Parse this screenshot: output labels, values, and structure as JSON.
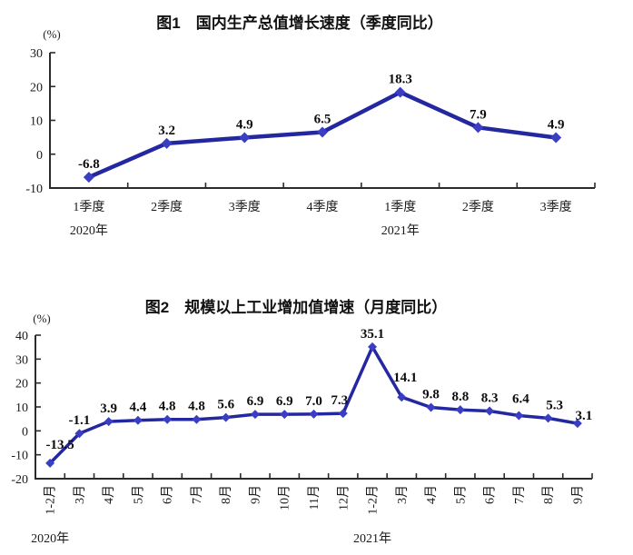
{
  "page": {
    "background": "#ffffff",
    "description": "Two stacked line charts from a national statistics quarterly report"
  },
  "colors": {
    "line": "#2428a0",
    "marker": "#3a3ec4",
    "axis": "#2b2b2b",
    "text": "#111111",
    "background": "#ffffff"
  },
  "chart_data": [
    {
      "id": "gdp-growth",
      "type": "line",
      "title": "图1　国内生产总值增长速度（季度同比）",
      "unit": "(%)",
      "xlabel": "",
      "ylabel": "(%)",
      "categories": [
        "1季度",
        "2季度",
        "3季度",
        "4季度",
        "1季度",
        "2季度",
        "3季度"
      ],
      "values": [
        -6.8,
        3.2,
        4.9,
        6.5,
        18.3,
        7.9,
        4.9
      ],
      "point_labels": [
        "-6.8",
        "3.2",
        "4.9",
        "6.5",
        "18.3",
        "7.9",
        "4.9"
      ],
      "y_ticks": [
        30,
        20,
        10,
        0,
        -10
      ],
      "ylim": [
        -10,
        30
      ],
      "years": [
        {
          "label": "2020年",
          "category_index": 0
        },
        {
          "label": "2021年",
          "category_index": 4
        }
      ],
      "line_color": "#2428a0",
      "marker_color": "#3a3ec4",
      "marker": "diamond",
      "grid": false,
      "legend": "none",
      "x_label_rotation": "horizontal"
    },
    {
      "id": "industrial-output-growth",
      "type": "line",
      "title": "图2　规模以上工业增加值增速（月度同比）",
      "unit": "(%)",
      "xlabel": "",
      "ylabel": "(%)",
      "categories": [
        "1-2月",
        "3月",
        "4月",
        "5月",
        "6月",
        "7月",
        "8月",
        "9月",
        "10月",
        "11月",
        "12月",
        "1-2月",
        "3月",
        "4月",
        "5月",
        "6月",
        "7月",
        "8月",
        "9月"
      ],
      "values": [
        -13.5,
        -1.1,
        3.9,
        4.4,
        4.8,
        4.8,
        5.6,
        6.9,
        6.9,
        7.0,
        7.3,
        35.1,
        14.1,
        9.8,
        8.8,
        8.3,
        6.4,
        5.3,
        3.1
      ],
      "point_labels": [
        "-13.5",
        "-1.1",
        "3.9",
        "4.4",
        "4.8",
        "4.8",
        "5.6",
        "6.9",
        "6.9",
        "7.0",
        "7.3",
        "35.1",
        "14.1",
        "9.8",
        "8.8",
        "8.3",
        "6.4",
        "5.3",
        "3.1"
      ],
      "y_ticks": [
        40,
        30,
        20,
        10,
        0,
        -10,
        -20
      ],
      "ylim": [
        -20,
        40
      ],
      "years": [
        {
          "label": "2020年",
          "category_index": 0
        },
        {
          "label": "2021年",
          "category_index": 11
        }
      ],
      "line_color": "#2428a0",
      "marker_color": "#3a3ec4",
      "marker": "diamond",
      "grid": false,
      "legend": "none",
      "x_label_rotation": "vertical"
    }
  ]
}
